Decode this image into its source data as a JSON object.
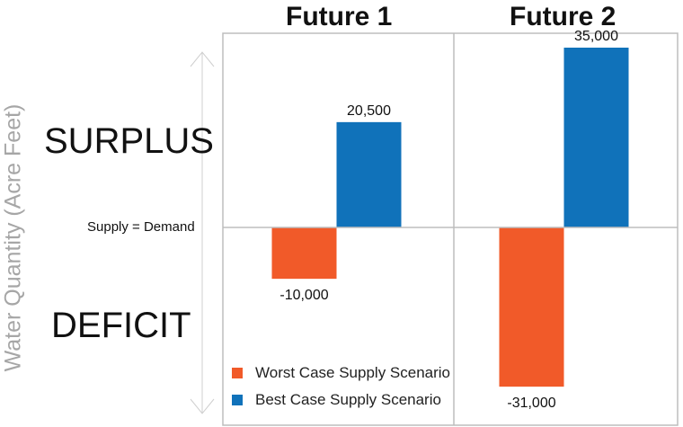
{
  "chart_data": {
    "type": "bar",
    "categories": [
      "Future 1",
      "Future 2"
    ],
    "series": [
      {
        "name": "Worst Case Supply Scenario",
        "color": "#f15a29",
        "values": [
          -10000,
          -31000
        ],
        "labels": [
          "-10,000",
          "-31,000"
        ]
      },
      {
        "name": "Best Case Supply Scenario",
        "color": "#1072ba",
        "values": [
          20500,
          35000
        ],
        "labels": [
          "20,500",
          "35,000"
        ]
      }
    ],
    "ylabel": "Water Quantity (Acre Feet)",
    "ylim": [
      -42000,
      42000
    ],
    "baseline_label": "Supply = Demand",
    "zone_labels": {
      "top": "SURPLUS",
      "bottom": "DEFICIT"
    },
    "grid": true,
    "legend_position": "bottom-left"
  }
}
